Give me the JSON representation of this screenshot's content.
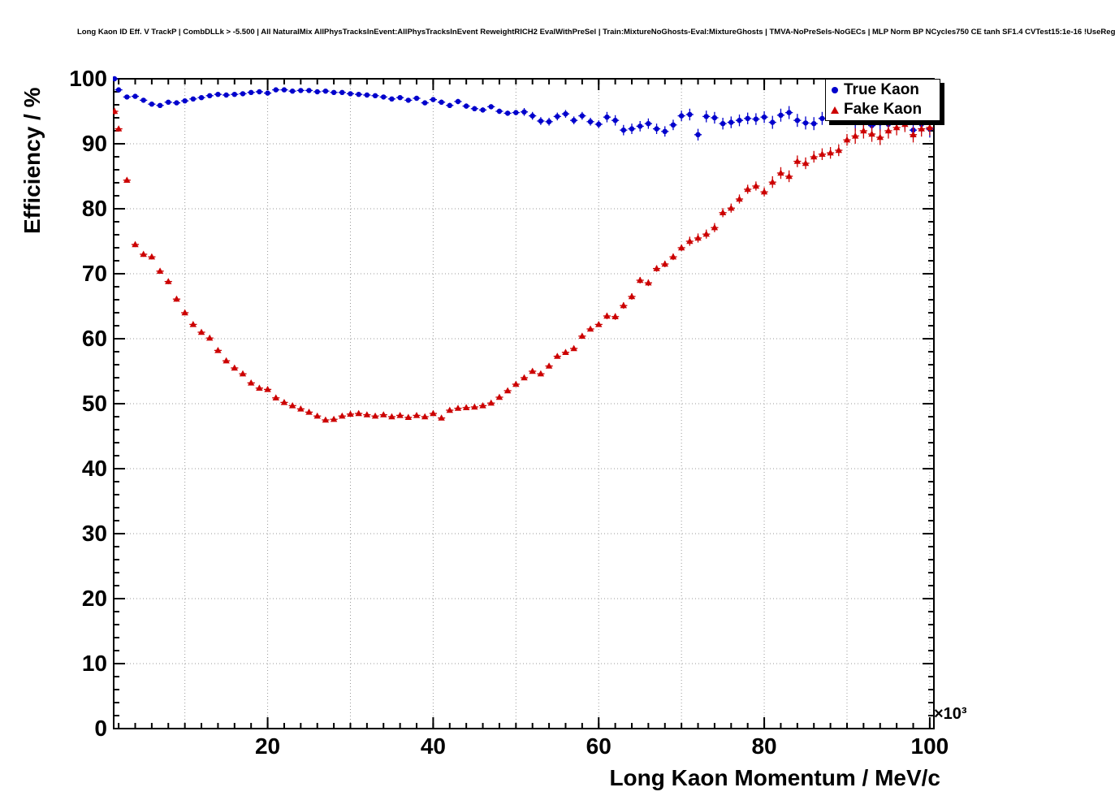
{
  "header": {
    "title": "Long Kaon ID Eff. V TrackP | CombDLLk > -5.500 | All NaturalMix AllPhysTracksInEvent:AllPhysTracksInEvent ReweightRICH2 EvalWithPreSel | Train:MixtureNoGhosts-Eval:MixtureGhosts | TMVA-NoPreSels-NoGECs | MLP Norm BP NCycles750 CE tanh SF1.4 CVTest15:1e-16 !UseReg"
  },
  "axes": {
    "y_title": "Efficiency / %",
    "x_title": "Long Kaon Momentum / MeV/c",
    "x_exponent": "×10³",
    "y_ticks": [
      0,
      10,
      20,
      30,
      40,
      50,
      60,
      70,
      80,
      90,
      100
    ],
    "x_ticks": [
      20,
      40,
      60,
      80,
      100
    ]
  },
  "legend": {
    "items": [
      {
        "label": "True Kaon",
        "color": "#0000cc",
        "marker": "circle"
      },
      {
        "label": "Fake Kaon",
        "color": "#cc0000",
        "marker": "triangle"
      }
    ]
  },
  "colors": {
    "true_kaon": "#0000cc",
    "fake_kaon": "#cc0000",
    "grid": "#999999",
    "frame": "#000000",
    "background": "#ffffff"
  },
  "chart_data": {
    "type": "scatter",
    "title": "Long Kaon ID Eff. V TrackP | CombDLLk > -5.500",
    "xlabel": "Long Kaon Momentum / MeV/c (×10³)",
    "ylabel": "Efficiency / %",
    "xlim": [
      1.4,
      100.5
    ],
    "ylim": [
      0,
      100
    ],
    "grid": true,
    "legend_position": "top-right",
    "series": [
      {
        "name": "True Kaon",
        "marker": "circle",
        "color": "#0000cc",
        "x": [
          1.5,
          2,
          3,
          4,
          5,
          6,
          7,
          8,
          9,
          10,
          11,
          12,
          13,
          14,
          15,
          16,
          17,
          18,
          19,
          20,
          21,
          22,
          23,
          24,
          25,
          26,
          27,
          28,
          29,
          30,
          31,
          32,
          33,
          34,
          35,
          36,
          37,
          38,
          39,
          40,
          41,
          42,
          43,
          44,
          45,
          46,
          47,
          48,
          49,
          50,
          51,
          52,
          53,
          54,
          55,
          56,
          57,
          58,
          59,
          60,
          61,
          62,
          63,
          64,
          65,
          66,
          67,
          68,
          69,
          70,
          71,
          72,
          73,
          74,
          75,
          76,
          77,
          78,
          79,
          80,
          81,
          82,
          83,
          84,
          85,
          86,
          87,
          88,
          89,
          90,
          91,
          92,
          93,
          94,
          95,
          96,
          97,
          98,
          99,
          100
        ],
        "y": [
          100.0,
          98.3,
          97.2,
          97.3,
          96.7,
          96.1,
          95.9,
          96.4,
          96.3,
          96.6,
          96.9,
          97.1,
          97.4,
          97.6,
          97.5,
          97.6,
          97.7,
          97.9,
          98.0,
          97.8,
          98.3,
          98.3,
          98.1,
          98.2,
          98.2,
          98.0,
          98.1,
          97.9,
          97.9,
          97.7,
          97.6,
          97.5,
          97.4,
          97.2,
          96.9,
          97.1,
          96.7,
          97.0,
          96.3,
          96.8,
          96.4,
          95.9,
          96.5,
          95.8,
          95.4,
          95.2,
          95.7,
          95.0,
          94.7,
          94.8,
          94.9,
          94.3,
          93.5,
          93.4,
          94.2,
          94.6,
          93.6,
          94.3,
          93.4,
          93.0,
          94.1,
          93.6,
          92.1,
          92.3,
          92.7,
          93.1,
          92.3,
          91.9,
          92.9,
          94.3,
          94.5,
          91.4,
          94.2,
          94.0,
          93.1,
          93.3,
          93.6,
          93.9,
          93.8,
          94.1,
          93.3,
          94.4,
          94.8,
          93.6,
          93.2,
          93.1,
          93.9,
          94.4,
          94.6,
          93.9,
          93.3,
          93.5,
          92.8,
          93.2,
          93.0,
          94.0,
          93.5,
          92.1,
          93.0,
          92.3
        ],
        "ey": [
          0.2,
          0.3,
          0.3,
          0.3,
          0.3,
          0.3,
          0.3,
          0.3,
          0.3,
          0.3,
          0.3,
          0.3,
          0.3,
          0.3,
          0.3,
          0.3,
          0.3,
          0.3,
          0.3,
          0.3,
          0.25,
          0.25,
          0.25,
          0.25,
          0.25,
          0.25,
          0.25,
          0.25,
          0.25,
          0.25,
          0.25,
          0.25,
          0.25,
          0.25,
          0.25,
          0.25,
          0.25,
          0.25,
          0.25,
          0.25,
          0.4,
          0.4,
          0.4,
          0.4,
          0.4,
          0.4,
          0.4,
          0.4,
          0.4,
          0.4,
          0.6,
          0.6,
          0.6,
          0.6,
          0.6,
          0.6,
          0.6,
          0.6,
          0.6,
          0.6,
          0.8,
          0.8,
          0.8,
          0.8,
          0.8,
          0.8,
          0.8,
          0.8,
          0.8,
          0.8,
          0.9,
          0.9,
          0.9,
          0.9,
          0.9,
          0.9,
          0.9,
          0.9,
          0.9,
          0.9,
          1.0,
          1.0,
          1.0,
          1.0,
          1.0,
          1.0,
          1.0,
          1.0,
          1.0,
          1.0,
          1.3,
          1.3,
          1.3,
          1.3,
          1.3,
          1.3,
          1.3,
          1.3,
          1.3,
          1.3
        ]
      },
      {
        "name": "Fake Kaon",
        "marker": "triangle",
        "color": "#cc0000",
        "x": [
          1.5,
          2,
          3,
          4,
          5,
          6,
          7,
          8,
          9,
          10,
          11,
          12,
          13,
          14,
          15,
          16,
          17,
          18,
          19,
          20,
          21,
          22,
          23,
          24,
          25,
          26,
          27,
          28,
          29,
          30,
          31,
          32,
          33,
          34,
          35,
          36,
          37,
          38,
          39,
          40,
          41,
          42,
          43,
          44,
          45,
          46,
          47,
          48,
          49,
          50,
          51,
          52,
          53,
          54,
          55,
          56,
          57,
          58,
          59,
          60,
          61,
          62,
          63,
          64,
          65,
          66,
          67,
          68,
          69,
          70,
          71,
          72,
          73,
          74,
          75,
          76,
          77,
          78,
          79,
          80,
          81,
          82,
          83,
          84,
          85,
          86,
          87,
          88,
          89,
          90,
          91,
          92,
          93,
          94,
          95,
          96,
          97,
          98,
          99,
          100
        ],
        "y": [
          95.0,
          92.3,
          84.4,
          74.5,
          73.0,
          72.6,
          70.4,
          68.8,
          66.1,
          64.0,
          62.2,
          61.0,
          60.1,
          58.2,
          56.6,
          55.5,
          54.6,
          53.2,
          52.4,
          52.2,
          50.9,
          50.2,
          49.7,
          49.2,
          48.7,
          48.1,
          47.5,
          47.6,
          48.1,
          48.4,
          48.5,
          48.3,
          48.1,
          48.3,
          48.0,
          48.2,
          47.9,
          48.2,
          48.0,
          48.5,
          47.8,
          49.0,
          49.3,
          49.4,
          49.5,
          49.7,
          50.1,
          51.0,
          52.0,
          53.0,
          54.0,
          55.0,
          54.6,
          55.8,
          57.3,
          57.9,
          58.5,
          60.4,
          61.5,
          62.2,
          63.5,
          63.4,
          65.1,
          66.5,
          69.0,
          68.6,
          70.8,
          71.5,
          72.6,
          74.0,
          75.0,
          75.5,
          76.1,
          77.1,
          79.4,
          80.1,
          81.5,
          83.0,
          83.5,
          82.6,
          84.1,
          85.5,
          85.0,
          87.3,
          87.0,
          88.0,
          88.4,
          88.6,
          89.0,
          90.6,
          91.2,
          92.0,
          91.5,
          91.0,
          92.0,
          92.5,
          93.0,
          91.4,
          92.3,
          92.5
        ],
        "ey": [
          0.5,
          0.4,
          0.4,
          0.4,
          0.4,
          0.4,
          0.4,
          0.4,
          0.4,
          0.4,
          0.3,
          0.3,
          0.3,
          0.3,
          0.3,
          0.3,
          0.3,
          0.3,
          0.3,
          0.3,
          0.3,
          0.3,
          0.3,
          0.3,
          0.3,
          0.3,
          0.3,
          0.3,
          0.3,
          0.3,
          0.3,
          0.3,
          0.3,
          0.3,
          0.3,
          0.3,
          0.3,
          0.3,
          0.3,
          0.3,
          0.35,
          0.35,
          0.35,
          0.35,
          0.35,
          0.35,
          0.35,
          0.35,
          0.35,
          0.35,
          0.35,
          0.35,
          0.35,
          0.35,
          0.35,
          0.35,
          0.35,
          0.35,
          0.35,
          0.35,
          0.5,
          0.5,
          0.5,
          0.5,
          0.5,
          0.5,
          0.5,
          0.5,
          0.5,
          0.5,
          0.7,
          0.7,
          0.7,
          0.7,
          0.7,
          0.7,
          0.7,
          0.7,
          0.7,
          0.7,
          0.9,
          0.9,
          0.9,
          0.9,
          0.9,
          0.9,
          0.9,
          0.9,
          0.9,
          0.9,
          1.2,
          1.2,
          1.2,
          1.2,
          1.2,
          1.2,
          1.2,
          1.2,
          1.2,
          1.2
        ]
      }
    ]
  }
}
